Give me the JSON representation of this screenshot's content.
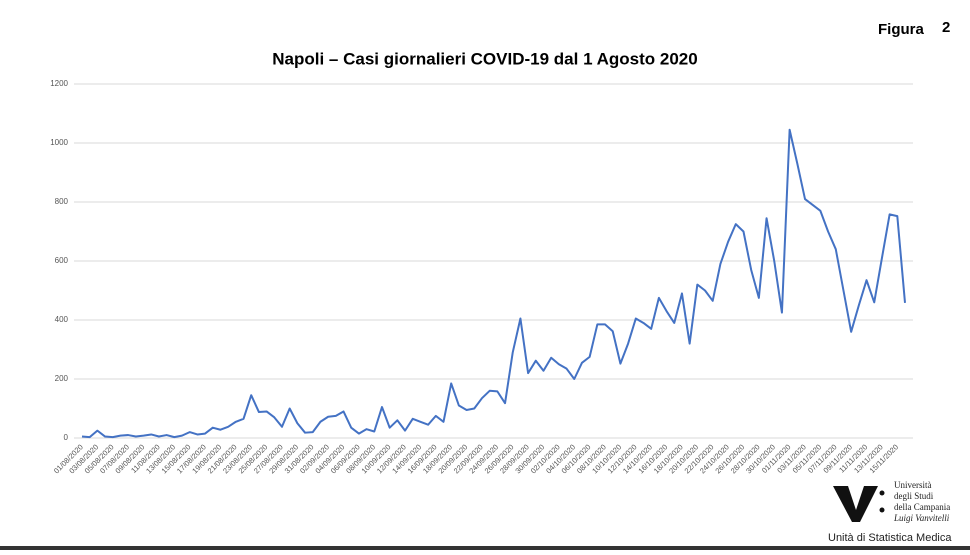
{
  "figure_label": "Figura",
  "figure_number": "2",
  "logo": {
    "line1": "Università",
    "line2": "degli Studi",
    "line3": "della Campania",
    "line4": "Luigi Vanvitelli",
    "unit": "Unità di Statistica Medica"
  },
  "chart_data": {
    "type": "line",
    "title": "Napoli – Casi giornalieri COVID-19 dal 1 Agosto 2020",
    "categories": [
      "01/08/2020",
      null,
      "03/08/2020",
      null,
      "05/08/2020",
      null,
      "07/08/2020",
      null,
      "09/08/2020",
      null,
      "11/08/2020",
      null,
      "13/08/2020",
      null,
      "15/08/2020",
      null,
      "17/08/2020",
      null,
      "19/08/2020",
      null,
      "21/08/2020",
      null,
      "23/08/2020",
      null,
      "25/08/2020",
      null,
      "27/08/2020",
      null,
      "29/08/2020",
      null,
      "31/08/2020",
      null,
      "02/09/2020",
      null,
      "04/09/2020",
      null,
      "06/09/2020",
      null,
      "08/09/2020",
      null,
      "10/09/2020",
      null,
      "12/09/2020",
      null,
      "14/09/2020",
      null,
      "16/09/2020",
      null,
      "18/09/2020",
      null,
      "20/09/2020",
      null,
      "22/09/2020",
      null,
      "24/09/2020",
      null,
      "26/09/2020",
      null,
      "28/09/2020",
      null,
      "30/09/2020",
      null,
      "02/10/2020",
      null,
      "04/10/2020",
      null,
      "06/10/2020",
      null,
      "08/10/2020",
      null,
      "10/10/2020",
      null,
      "12/10/2020",
      null,
      "14/10/2020",
      null,
      "16/10/2020",
      null,
      "18/10/2020",
      null,
      "20/10/2020",
      null,
      "22/10/2020",
      null,
      "24/10/2020",
      null,
      "26/10/2020",
      null,
      "28/10/2020",
      null,
      "30/10/2020",
      null,
      "01/11/2020",
      null,
      "03/11/2020",
      null,
      "05/11/2020",
      null,
      "07/11/2020",
      null,
      "09/11/2020",
      null,
      "11/11/2020",
      null,
      "13/11/2020",
      null,
      "15/11/2020",
      null
    ],
    "series": [
      {
        "name": "Casi giornalieri",
        "color": "#4472c4",
        "values": [
          5,
          3,
          25,
          5,
          3,
          8,
          10,
          5,
          8,
          12,
          5,
          10,
          3,
          8,
          20,
          12,
          15,
          35,
          28,
          38,
          55,
          65,
          145,
          88,
          90,
          70,
          38,
          100,
          50,
          18,
          20,
          55,
          72,
          75,
          90,
          35,
          15,
          30,
          22,
          105,
          35,
          60,
          25,
          65,
          55,
          45,
          75,
          55,
          185,
          110,
          95,
          100,
          135,
          160,
          158,
          118,
          290,
          405,
          220,
          262,
          228,
          272,
          250,
          235,
          200,
          255,
          275,
          385,
          385,
          362,
          252,
          320,
          405,
          390,
          370,
          475,
          430,
          390,
          490,
          320,
          520,
          500,
          465,
          590,
          665,
          725,
          700,
          570,
          475,
          745,
          600,
          425,
          1045,
          930,
          810,
          790,
          770,
          700,
          640,
          500,
          360,
          450,
          535,
          460,
          610,
          758,
          752,
          458
        ]
      }
    ],
    "ylim": [
      0,
      1200
    ],
    "yticks": [
      0,
      200,
      400,
      600,
      800,
      1000,
      1200
    ],
    "grid": true
  }
}
